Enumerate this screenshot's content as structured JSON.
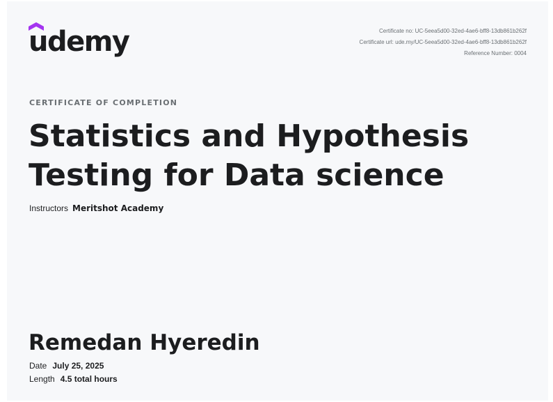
{
  "brand": {
    "logo_text": "udemy",
    "accent_color": "#a435f0",
    "text_color": "#1c1d1f"
  },
  "meta": {
    "certificate_no": "Certificate no: UC-5eea5d00-32ed-4ae6-bff8-13db861b262f",
    "certificate_url": "Certificate url: ude.my/UC-5eea5d00-32ed-4ae6-bff8-13db861b262f",
    "reference_number": "Reference Number: 0004"
  },
  "certificate": {
    "eyebrow": "CERTIFICATE OF COMPLETION",
    "title_line_1": "Statistics and Hypothesis",
    "title_line_2": "Testing for Data science",
    "instructors_label": "Instructors",
    "instructor_name": "Meritshot Academy",
    "recipient": "Remedan Hyeredin",
    "date_label": "Date",
    "date_value": "July 25, 2025",
    "length_label": "Length",
    "length_value": "4.5 total hours"
  }
}
